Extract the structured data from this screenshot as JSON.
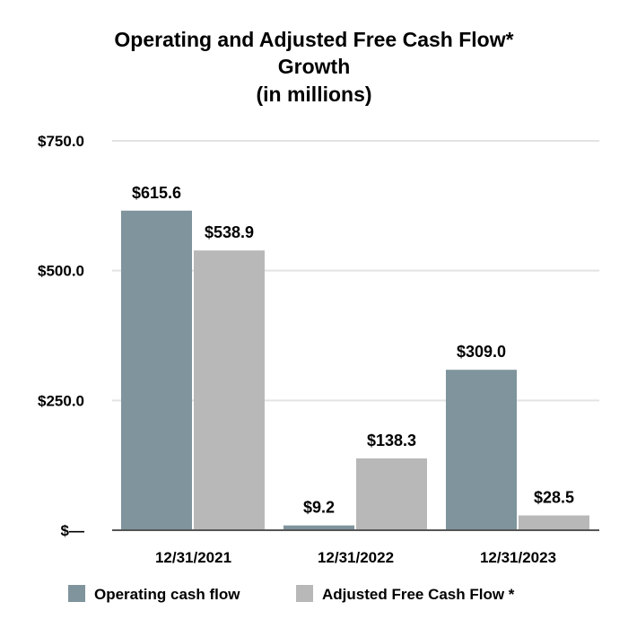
{
  "chart_data": {
    "type": "bar",
    "title_lines": [
      "Operating and Adjusted Free Cash Flow*",
      "Growth",
      "(in millions)"
    ],
    "categories": [
      "12/31/2021",
      "12/31/2022",
      "12/31/2023"
    ],
    "series": [
      {
        "name": "Operating cash flow",
        "values": [
          615.6,
          9.2,
          309.0
        ],
        "labels": [
          "$615.6",
          "$9.2",
          "$309.0"
        ],
        "color": "#7f949c"
      },
      {
        "name": "Adjusted Free Cash Flow *",
        "values": [
          538.9,
          138.3,
          28.5
        ],
        "labels": [
          "$538.9",
          "$138.3",
          "$28.5"
        ],
        "color": "#b8b8b8"
      }
    ],
    "y_ticks": [
      {
        "value": 0,
        "label": "$—"
      },
      {
        "value": 250,
        "label": "$250.0"
      },
      {
        "value": 500,
        "label": "$500.0"
      },
      {
        "value": 750,
        "label": "$750.0"
      }
    ],
    "ylim": [
      0,
      750
    ],
    "xlabel": "",
    "ylabel": "",
    "grid": true,
    "legend_position": "bottom",
    "gridline_color": "#e3e3e3",
    "axis_color": "#555555"
  }
}
